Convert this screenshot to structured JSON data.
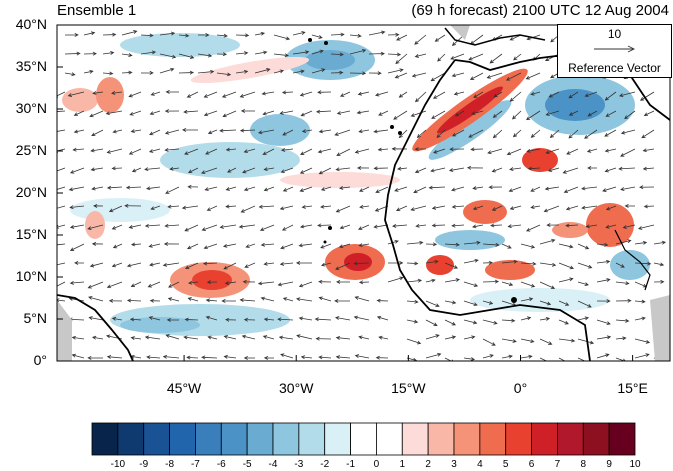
{
  "header": {
    "left_title": "Ensemble 1",
    "right_title": "(69 h forecast) 2100 UTC 12 Aug 2004"
  },
  "map": {
    "lat_labels": [
      "40°N",
      "35°N",
      "30°N",
      "25°N",
      "20°N",
      "15°N",
      "10°N",
      "5°N",
      "0°"
    ],
    "lat_values": [
      40,
      35,
      30,
      25,
      20,
      15,
      10,
      5,
      0
    ],
    "lon_labels": [
      "45°W",
      "30°W",
      "15°W",
      "0°",
      "15°E"
    ],
    "lon_values": [
      -45,
      -30,
      -15,
      0,
      15
    ],
    "extent": {
      "lon_min": -62,
      "lon_max": 20,
      "lat_min": 0,
      "lat_max": 40
    },
    "reference_vector": {
      "value": "10",
      "label": "Reference Vector"
    }
  },
  "colorbar": {
    "labels": [
      "-10",
      "-9",
      "-8",
      "-7",
      "-6",
      "-5",
      "-4",
      "-3",
      "-2",
      "-1",
      "0",
      "1",
      "2",
      "3",
      "4",
      "5",
      "6",
      "7",
      "8",
      "9",
      "10"
    ],
    "colors": [
      "#08244a",
      "#0f3a70",
      "#1a5296",
      "#2166ac",
      "#3a7fbb",
      "#4b93c6",
      "#6aabd1",
      "#8ec6df",
      "#b3dcea",
      "#d9f0f7",
      "#ffffff",
      "#ffffff",
      "#fddbd8",
      "#f9b7a8",
      "#f59378",
      "#ef6c4f",
      "#e8412f",
      "#cf2027",
      "#b2182b",
      "#8c1020",
      "#67001f"
    ]
  },
  "colors": {
    "coast": "#000000",
    "land_mask": "#c8c8c8"
  }
}
